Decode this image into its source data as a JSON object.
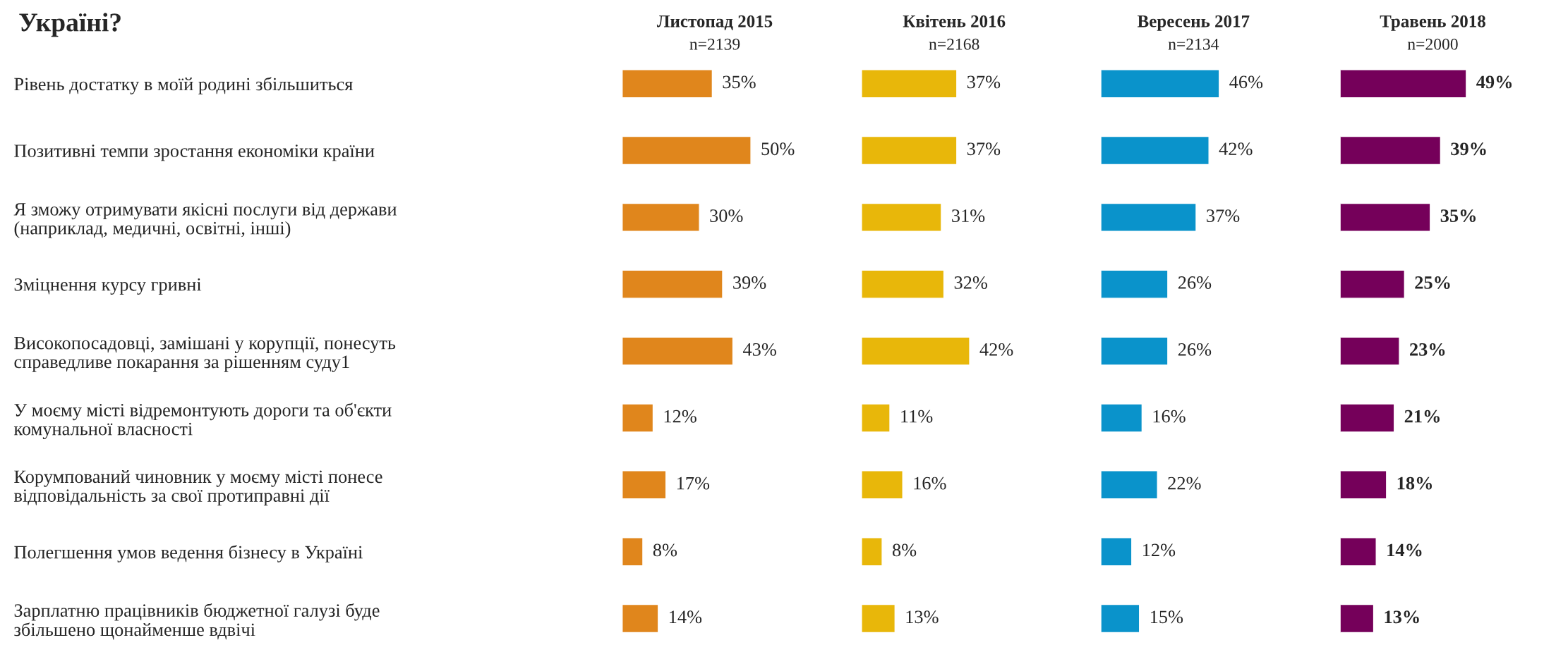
{
  "chart_data": [
    {
      "type": "bar",
      "orientation": "horizontal",
      "title": "Листопад 2015",
      "subtitle": "n=2139",
      "annotations": [
        "Україні?"
      ],
      "tick_labels": "y",
      "color": "#e0861c",
      "categories": [
        "Рівень достатку в моїй родині збільшиться",
        "Позитивні темпи зростання економіки країни",
        "Я зможу отримувати якісні послуги від держави\n(наприклад, медичні, освітні, інші)",
        "Зміцнення курсу гривні",
        "Високопосадовці, замішані у корупції, понесуть\nсправедливе покарання за рішенням суду1",
        "У моєму місті відремонтують дороги та об'єкти\nкомунальної власності",
        "Корумпований чиновник у моєму місті понесе\nвідповідальність за свої протиправні дії",
        "Полегшення умов ведення бізнесу в Україні",
        "Зарплатню працівників бюджетної галузі буде\nзбільшено щонайменше вдвічі"
      ],
      "values": [
        35,
        50,
        30,
        39,
        43,
        12,
        17,
        8,
        14
      ],
      "value_labels": [
        "35%",
        "50%",
        "30%",
        "39%",
        "43%",
        "12%",
        "17%",
        "8%",
        "14%"
      ]
    },
    {
      "type": "bar",
      "orientation": "horizontal",
      "title": "Квітень 2016",
      "subtitle": "n=2168",
      "tick_labels": false,
      "color": "#e8b70a",
      "categories": [
        null,
        null,
        null,
        null,
        null,
        null,
        null,
        null,
        null
      ],
      "values": [
        37,
        37,
        31,
        32,
        42,
        11,
        16,
        8,
        13
      ],
      "value_labels": [
        "37%",
        "37%",
        "31%",
        "32%",
        "42%",
        "11%",
        "16%",
        "8%",
        "13%"
      ]
    },
    {
      "type": "bar",
      "orientation": "horizontal",
      "title": "Вересень 2017",
      "subtitle": "n=2134",
      "tick_labels": false,
      "color": "#0a93cb",
      "categories": [
        null,
        null,
        null,
        null,
        null,
        null,
        null,
        null,
        null
      ],
      "values": [
        46,
        42,
        37,
        26,
        26,
        16,
        22,
        12,
        15
      ],
      "value_labels": [
        "46%",
        "42%",
        "37%",
        "26%",
        "26%",
        "16%",
        "22%",
        "12%",
        "15%"
      ]
    },
    {
      "type": "bar",
      "orientation": "horizontal",
      "title": "Травень 2018",
      "subtitle": "n=2000",
      "tick_labels": false,
      "color": "#75005a",
      "categories": [
        null,
        null,
        null,
        null,
        null,
        null,
        null,
        null,
        null
      ],
      "values": [
        49,
        39,
        35,
        25,
        23,
        21,
        18,
        14,
        13
      ],
      "value_labels": [
        "49%",
        "39%",
        "35%",
        "25%",
        "23%",
        "21%",
        "18%",
        "14%",
        "13%"
      ]
    }
  ]
}
